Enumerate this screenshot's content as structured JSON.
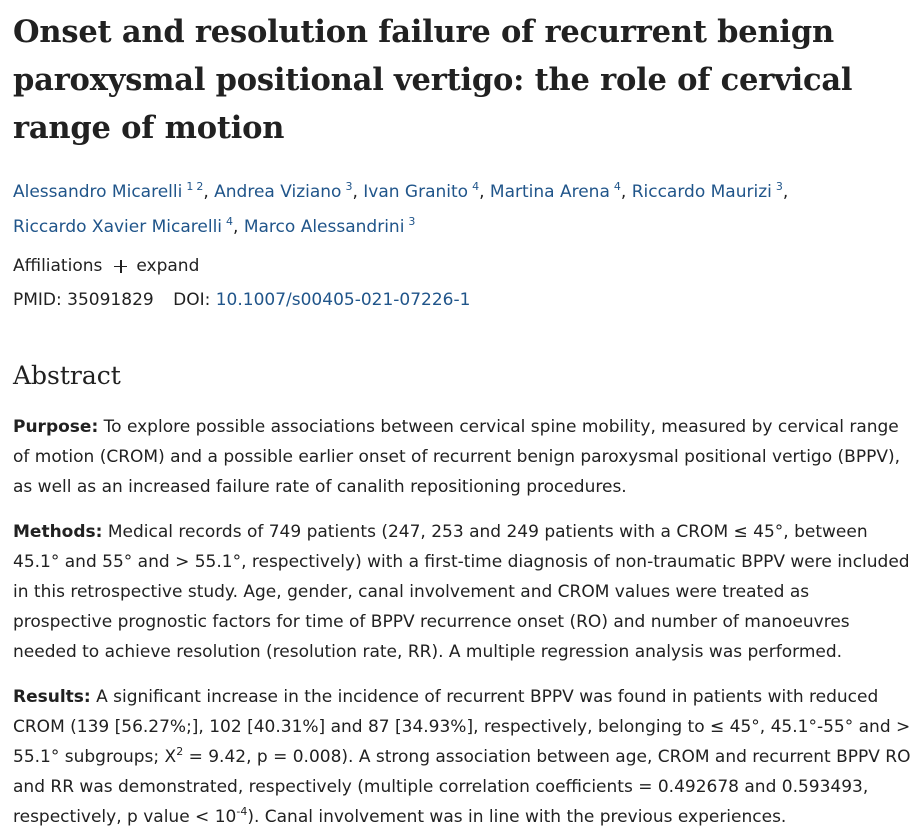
{
  "article": {
    "title": "Onset and resolution failure of recurrent benign paroxysmal positional vertigo: the role of cervical range of motion",
    "authors": [
      {
        "name": "Alessandro Micarelli",
        "affils": [
          "1",
          "2"
        ],
        "sep": ", "
      },
      {
        "name": "Andrea Viziano",
        "affils": [
          "3"
        ],
        "sep": ", "
      },
      {
        "name": "Ivan Granito",
        "affils": [
          "4"
        ],
        "sep": ", "
      },
      {
        "name": "Martina Arena",
        "affils": [
          "4"
        ],
        "sep": ", "
      },
      {
        "name": "Riccardo Maurizi",
        "affils": [
          "3"
        ],
        "sep": ","
      },
      {
        "name": "Riccardo Xavier Micarelli",
        "affils": [
          "4"
        ],
        "sep": ", "
      },
      {
        "name": "Marco Alessandrini",
        "affils": [
          "3"
        ],
        "sep": ""
      }
    ],
    "affiliations_label": "Affiliations",
    "expand_label": "expand",
    "pmid_label": "PMID:",
    "pmid": "35091829",
    "doi_label": "DOI:",
    "doi": "10.1007/s00405-021-07226-1"
  },
  "abstract": {
    "heading": "Abstract",
    "purpose": {
      "label": "Purpose:",
      "text": "To explore possible associations between cervical spine mobility, measured by cervical range of motion (CROM) and a possible earlier onset of recurrent benign paroxysmal positional vertigo (BPPV), as well as an increased failure rate of canalith repositioning procedures."
    },
    "methods": {
      "label": "Methods:",
      "text": "Medical records of 749 patients (247, 253 and 249 patients with a CROM ≤ 45°, between 45.1° and 55° and > 55.1°, respectively) with a first-time diagnosis of non-traumatic BPPV were included in this retrospective study. Age, gender, canal involvement and CROM values were treated as prospective prognostic factors for time of BPPV recurrence onset (RO) and number of manoeuvres needed to achieve resolution (resolution rate, RR). A multiple regression analysis was performed."
    },
    "results": {
      "label": "Results:",
      "text_1": "A significant increase in the incidence of recurrent BPPV was found in patients with reduced CROM (139 [56.27%;], 102 [40.31%] and 87 [34.93%], respectively, belonging to ≤ 45°, 45.1°-55° and > 55.1° subgroups; X",
      "sup_1": "2",
      "text_2": " = 9.42, p = 0.008). A strong association between age, CROM and recurrent BPPV RO and RR was demonstrated, respectively (multiple correlation coefficients = 0.492678 and 0.593493, respectively, p value < 10",
      "sup_2": "-4",
      "text_3": "). Canal involvement was in line with the previous experiences."
    }
  }
}
